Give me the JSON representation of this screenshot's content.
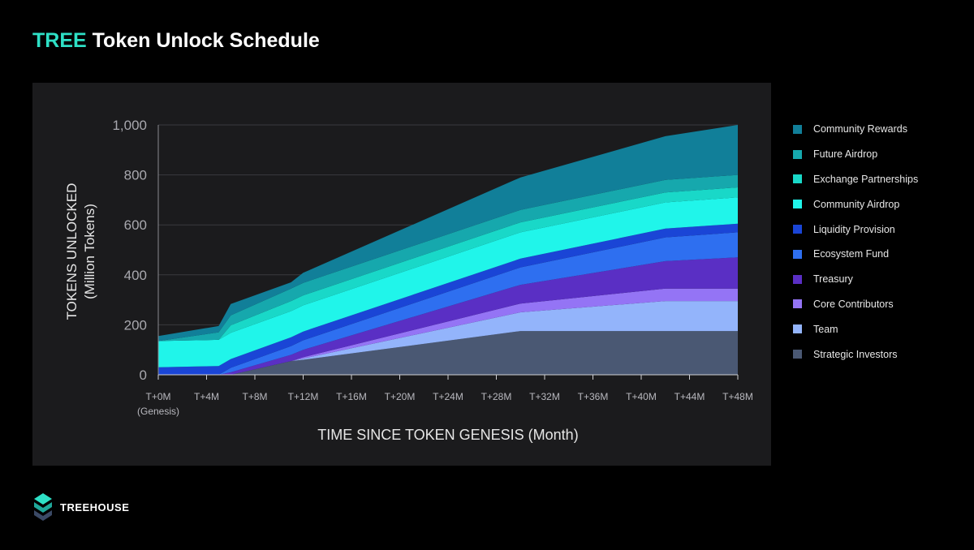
{
  "header": {
    "title_accent": "TREE",
    "title_rest": "Token Unlock Schedule"
  },
  "brand": {
    "name": "TREEHOUSE",
    "accent_color": "#2ee0c6"
  },
  "chart_data": {
    "type": "area",
    "stacked": true,
    "title": "TREE Token Unlock Schedule",
    "xlabel": "TIME SINCE TOKEN GENESIS (Month)",
    "ylabel": "TOKENS UNLOCKED",
    "ylabel_sub": "(Million Tokens)",
    "ylim": [
      0,
      1000
    ],
    "xlim": [
      0,
      48
    ],
    "y_ticks": [
      0,
      200,
      400,
      600,
      800,
      1000
    ],
    "y_tick_labels": [
      "0",
      "200",
      "400",
      "600",
      "800",
      "1,000"
    ],
    "x_ticks": [
      0,
      4,
      8,
      12,
      16,
      20,
      24,
      28,
      32,
      36,
      40,
      44,
      48
    ],
    "x_tick_labels": [
      "T+0M",
      "T+4M",
      "T+8M",
      "T+12M",
      "T+16M",
      "T+20M",
      "T+24M",
      "T+28M",
      "T+32M",
      "T+36M",
      "T+40M",
      "T+44M",
      "T+48M"
    ],
    "x_tick_sublabel": "(Genesis)",
    "grid": true,
    "legend_position": "right",
    "x": [
      0,
      5,
      6,
      11,
      12,
      30,
      42,
      48
    ],
    "series": [
      {
        "name": "Strategic Investors",
        "color": "#4a5873",
        "values": [
          0,
          0,
          0,
          55,
          60,
          175,
          175,
          175
        ]
      },
      {
        "name": "Team",
        "color": "#93b4fb",
        "values": [
          0,
          0,
          0,
          0,
          5,
          75,
          120,
          120
        ]
      },
      {
        "name": "Core Contributors",
        "color": "#9474f5",
        "values": [
          0,
          0,
          0,
          0,
          5,
          35,
          50,
          50
        ]
      },
      {
        "name": "Treasury",
        "color": "#5a2fc4",
        "values": [
          0,
          0,
          10,
          25,
          30,
          75,
          110,
          125
        ]
      },
      {
        "name": "Ecosystem Fund",
        "color": "#2e6ff0",
        "values": [
          0,
          0,
          18,
          35,
          38,
          70,
          95,
          100
        ]
      },
      {
        "name": "Liquidity Provision",
        "color": "#1a45d6",
        "values": [
          30,
          35,
          35,
          35,
          35,
          35,
          35,
          35
        ]
      },
      {
        "name": "Community Airdrop",
        "color": "#20f5ea",
        "values": [
          105,
          105,
          105,
          105,
          105,
          105,
          105,
          105
        ]
      },
      {
        "name": "Exchange Partnerships",
        "color": "#19d8c8",
        "values": [
          0,
          0,
          30,
          40,
          40,
          40,
          40,
          40
        ]
      },
      {
        "name": "Future Airdrop",
        "color": "#16a8ad",
        "values": [
          0,
          30,
          40,
          50,
          50,
          50,
          50,
          50
        ]
      },
      {
        "name": "Community Rewards",
        "color": "#117f99",
        "values": [
          20,
          25,
          45,
          25,
          40,
          130,
          175,
          200
        ]
      }
    ]
  }
}
